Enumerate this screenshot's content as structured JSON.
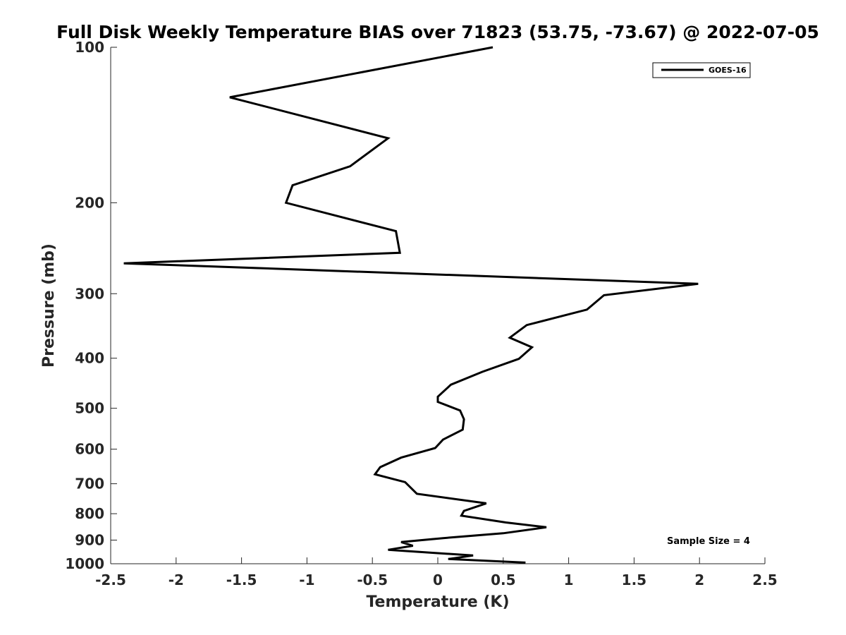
{
  "chart_data": {
    "type": "line",
    "title": "Full Disk Weekly Temperature BIAS over 71823 (53.75, -73.67) @ 2022-07-05",
    "xlabel": "Temperature (K)",
    "ylabel": "Pressure (mb)",
    "xlim": [
      -2.5,
      2.5
    ],
    "ylim": [
      1000,
      100
    ],
    "y_scale": "log",
    "y_direction": "reversed",
    "grid": false,
    "legend_position": "top-right",
    "x_ticks": [
      -2.5,
      -2,
      -1.5,
      -1,
      -0.5,
      0,
      0.5,
      1,
      1.5,
      2,
      2.5
    ],
    "x_tick_labels": [
      "-2.5",
      "-2",
      "-1.5",
      "-1",
      "-0.5",
      "0",
      "0.5",
      "1",
      "1.5",
      "2",
      "2.5"
    ],
    "y_ticks": [
      100,
      200,
      300,
      400,
      500,
      600,
      700,
      800,
      900,
      1000
    ],
    "y_tick_labels": [
      "100",
      "200",
      "300",
      "400",
      "500",
      "600",
      "700",
      "800",
      "900",
      "1000"
    ],
    "series": [
      {
        "name": "GOES-16",
        "color": "#000000",
        "points": [
          {
            "t": 0.42,
            "p": 100
          },
          {
            "t": -1.59,
            "p": 125
          },
          {
            "t": -0.38,
            "p": 150
          },
          {
            "t": -0.67,
            "p": 170
          },
          {
            "t": -1.11,
            "p": 185
          },
          {
            "t": -1.16,
            "p": 200
          },
          {
            "t": -0.32,
            "p": 227
          },
          {
            "t": -0.29,
            "p": 250
          },
          {
            "t": -2.4,
            "p": 262
          },
          {
            "t": 1.99,
            "p": 287
          },
          {
            "t": 1.27,
            "p": 302
          },
          {
            "t": 1.14,
            "p": 322
          },
          {
            "t": 0.68,
            "p": 345
          },
          {
            "t": 0.55,
            "p": 365
          },
          {
            "t": 0.72,
            "p": 381
          },
          {
            "t": 0.62,
            "p": 401
          },
          {
            "t": 0.34,
            "p": 425
          },
          {
            "t": 0.1,
            "p": 450
          },
          {
            "t": 0.0,
            "p": 475
          },
          {
            "t": 0.0,
            "p": 486
          },
          {
            "t": 0.17,
            "p": 505
          },
          {
            "t": 0.2,
            "p": 525
          },
          {
            "t": 0.19,
            "p": 550
          },
          {
            "t": 0.04,
            "p": 575
          },
          {
            "t": -0.02,
            "p": 597
          },
          {
            "t": -0.28,
            "p": 623
          },
          {
            "t": -0.44,
            "p": 650
          },
          {
            "t": -0.48,
            "p": 671
          },
          {
            "t": -0.25,
            "p": 695
          },
          {
            "t": -0.16,
            "p": 732
          },
          {
            "t": 0.37,
            "p": 764
          },
          {
            "t": 0.2,
            "p": 790
          },
          {
            "t": 0.18,
            "p": 807
          },
          {
            "t": 0.52,
            "p": 832
          },
          {
            "t": 0.83,
            "p": 850
          },
          {
            "t": 0.5,
            "p": 873
          },
          {
            "t": 0.04,
            "p": 892
          },
          {
            "t": -0.28,
            "p": 908
          },
          {
            "t": -0.19,
            "p": 923
          },
          {
            "t": -0.38,
            "p": 940
          },
          {
            "t": -0.02,
            "p": 953
          },
          {
            "t": 0.27,
            "p": 964
          },
          {
            "t": 0.08,
            "p": 979
          },
          {
            "t": 0.67,
            "p": 995
          }
        ]
      }
    ],
    "annotations": [
      "Sample Size = 4"
    ]
  }
}
